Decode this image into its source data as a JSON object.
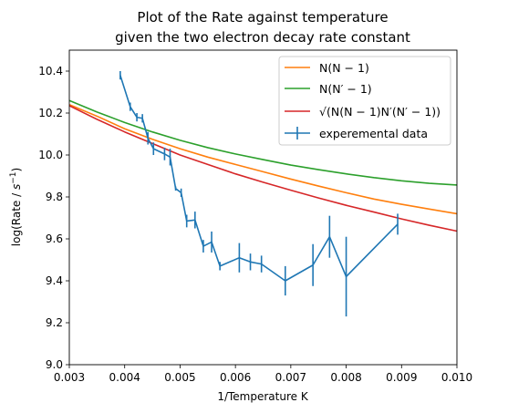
{
  "chart_data": {
    "type": "line",
    "title": [
      "Plot of the Rate against temperature",
      "given the two electron decay rate constant"
    ],
    "xlabel": "1/Temperature K",
    "ylabel_parts": [
      "log(Rate / ",
      "s",
      "−1",
      ")"
    ],
    "xlim": [
      0.003,
      0.01
    ],
    "ylim": [
      9.0,
      10.5
    ],
    "xticks": [
      0.003,
      0.004,
      0.005,
      0.006,
      0.007,
      0.008,
      0.009,
      0.01
    ],
    "xtick_labels": [
      "0.003",
      "0.004",
      "0.005",
      "0.006",
      "0.007",
      "0.008",
      "0.009",
      "0.010"
    ],
    "yticks": [
      9.0,
      9.2,
      9.4,
      9.6,
      9.8,
      10.0,
      10.2,
      10.4
    ],
    "ytick_labels": [
      "9.0",
      "9.2",
      "9.4",
      "9.6",
      "9.8",
      "10.0",
      "10.2",
      "10.4"
    ],
    "grid": false,
    "legend_position": "top-right",
    "series": [
      {
        "name": "N(N − 1)",
        "color": "#ff7f0e",
        "kind": "curve",
        "x": [
          0.003,
          0.0035,
          0.004,
          0.0045,
          0.005,
          0.0055,
          0.006,
          0.0065,
          0.007,
          0.0075,
          0.008,
          0.0085,
          0.009,
          0.0095,
          0.01
        ],
        "y": [
          10.24,
          10.185,
          10.125,
          10.075,
          10.03,
          9.99,
          9.955,
          9.92,
          9.885,
          9.852,
          9.82,
          9.79,
          9.765,
          9.742,
          9.72
        ]
      },
      {
        "name": "N(N′ − 1)",
        "color": "#2ca02c",
        "kind": "curve",
        "x": [
          0.003,
          0.0035,
          0.004,
          0.0045,
          0.005,
          0.0055,
          0.006,
          0.0065,
          0.007,
          0.0075,
          0.008,
          0.0085,
          0.009,
          0.0095,
          0.01
        ],
        "y": [
          10.26,
          10.205,
          10.155,
          10.11,
          10.07,
          10.035,
          10.005,
          9.978,
          9.952,
          9.93,
          9.91,
          9.892,
          9.877,
          9.865,
          9.857
        ]
      },
      {
        "name": "√(N(N − 1)N′(N′ − 1))",
        "color": "#d62728",
        "kind": "curve",
        "x": [
          0.003,
          0.0035,
          0.004,
          0.0045,
          0.005,
          0.0055,
          0.006,
          0.0065,
          0.007,
          0.0075,
          0.008,
          0.0085,
          0.009,
          0.0095,
          0.01
        ],
        "y": [
          10.235,
          10.17,
          10.11,
          10.055,
          10.0,
          9.955,
          9.91,
          9.87,
          9.832,
          9.795,
          9.76,
          9.728,
          9.695,
          9.665,
          9.637
        ]
      },
      {
        "name": "experemental data",
        "color": "#1f77b4",
        "kind": "errorbar",
        "x": [
          0.00392,
          0.0041,
          0.00422,
          0.00432,
          0.00442,
          0.00452,
          0.00472,
          0.00482,
          0.00492,
          0.00502,
          0.00512,
          0.00527,
          0.00542,
          0.00557,
          0.00572,
          0.00607,
          0.00627,
          0.00647,
          0.0069,
          0.0074,
          0.0077,
          0.008,
          0.00893
        ],
        "y": [
          10.38,
          10.23,
          10.18,
          10.175,
          10.08,
          10.03,
          10.005,
          9.99,
          9.84,
          9.82,
          9.685,
          9.69,
          9.565,
          9.585,
          9.47,
          9.51,
          9.49,
          9.48,
          9.4,
          9.475,
          9.61,
          9.42,
          9.67
        ],
        "yerr": [
          0.02,
          0.02,
          0.02,
          0.02,
          0.03,
          0.03,
          0.03,
          0.04,
          0.01,
          0.02,
          0.03,
          0.04,
          0.03,
          0.05,
          0.02,
          0.07,
          0.04,
          0.04,
          0.07,
          0.1,
          0.1,
          0.19,
          0.05
        ]
      }
    ]
  }
}
